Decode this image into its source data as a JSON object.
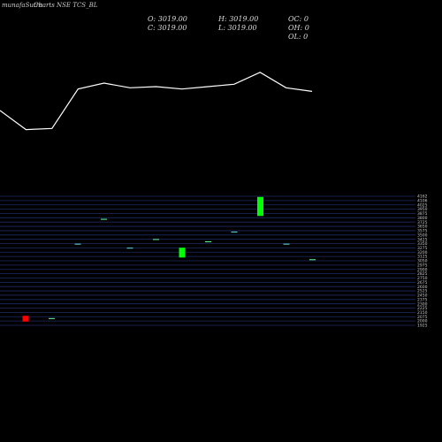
{
  "header": {
    "site": "munafaSutra",
    "title": "Charts NSE TCS_BL",
    "open": "O: 3019.00",
    "high": "H: 3019.00",
    "oc": "OC: 0",
    "close": "C: 3019.00",
    "low": "L: 3019.00",
    "oh": "OH: 0",
    "ol": "OL: 0"
  },
  "colors": {
    "bg": "#000000",
    "grid": "#1e2a66",
    "line": "#ffffff",
    "up": "#00ff00",
    "down": "#ff0000"
  },
  "chart_data": {
    "type": "candlestick",
    "y_ticks": [
      "4162",
      "4106",
      "4025",
      "3950",
      "3875",
      "3800",
      "3725",
      "3650",
      "3575",
      "3500",
      "3425",
      "3350",
      "3275",
      "3200",
      "3125",
      "3050",
      "2975",
      "2900",
      "2825",
      "2750",
      "2675",
      "2600",
      "2525",
      "2450",
      "2375",
      "2300",
      "2225",
      "2150",
      "2075",
      "2000",
      "1925"
    ],
    "ylim": [
      1925,
      4162
    ],
    "line_series": [
      0.0,
      -0.8,
      -0.75,
      0.9,
      1.15,
      0.95,
      1.0,
      0.9,
      1.0,
      1.1,
      1.6,
      0.95,
      0.8
    ],
    "candles": [
      {
        "open": 2090,
        "close": 1990,
        "type": "down"
      },
      {
        "open": 2050,
        "close": 2050,
        "type": "flat"
      },
      {
        "open": 3340,
        "close": 3340,
        "type": "flat"
      },
      {
        "open": 3770,
        "close": 3770,
        "type": "flat"
      },
      {
        "open": 3270,
        "close": 3270,
        "type": "flat"
      },
      {
        "open": 3420,
        "close": 3420,
        "type": "flat"
      },
      {
        "open": 3100,
        "close": 3270,
        "type": "up"
      },
      {
        "open": 3380,
        "close": 3380,
        "type": "flat"
      },
      {
        "open": 3550,
        "close": 3550,
        "type": "flat"
      },
      {
        "open": 3820,
        "close": 4150,
        "type": "up"
      },
      {
        "open": 3340,
        "close": 3340,
        "type": "flat"
      },
      {
        "open": 3070,
        "close": 3070,
        "type": "flat"
      }
    ]
  }
}
